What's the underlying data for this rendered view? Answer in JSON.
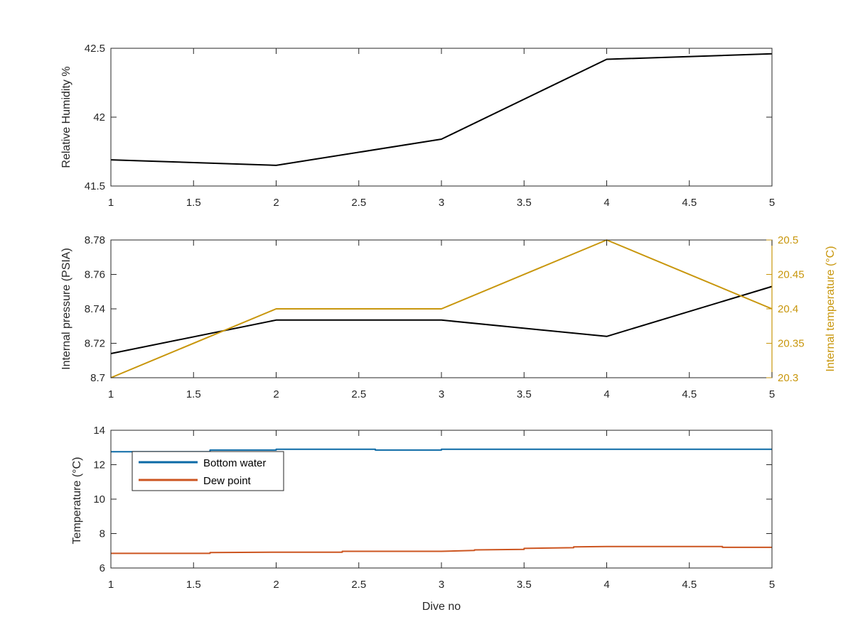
{
  "figure": {
    "background": "#ffffff",
    "axis_color": "#262626"
  },
  "chart_data": [
    {
      "type": "line",
      "xlim": [
        1,
        5
      ],
      "ylim": [
        41.5,
        42.5
      ],
      "x_ticks": [
        1,
        1.5,
        2,
        2.5,
        3,
        3.5,
        4,
        4.5,
        5
      ],
      "x_tick_labels": [
        "1",
        "1.5",
        "2",
        "2.5",
        "3",
        "3.5",
        "4",
        "4.5",
        "5"
      ],
      "y_ticks": [
        41.5,
        42,
        42.5
      ],
      "y_tick_labels": [
        "41.5",
        "42",
        "42.5"
      ],
      "ylabel": "Relative Humidity %",
      "xlabel": "",
      "grid": false,
      "series": [
        {
          "color": "#000000",
          "x": [
            1,
            2,
            3,
            4,
            5
          ],
          "y": [
            41.69,
            41.65,
            41.84,
            42.42,
            42.46
          ]
        }
      ]
    },
    {
      "type": "line",
      "xlim": [
        1,
        5
      ],
      "ylim": [
        8.7,
        8.78
      ],
      "y2lim": [
        20.3,
        20.5
      ],
      "x_ticks": [
        1,
        1.5,
        2,
        2.5,
        3,
        3.5,
        4,
        4.5,
        5
      ],
      "x_tick_labels": [
        "1",
        "1.5",
        "2",
        "2.5",
        "3",
        "3.5",
        "4",
        "4.5",
        "5"
      ],
      "y_ticks": [
        8.7,
        8.72,
        8.74,
        8.76,
        8.78
      ],
      "y_tick_labels": [
        "8.7",
        "8.72",
        "8.74",
        "8.76",
        "8.78"
      ],
      "y2_ticks": [
        20.3,
        20.35,
        20.4,
        20.45,
        20.5
      ],
      "y2_tick_labels": [
        "20.3",
        "20.35",
        "20.4",
        "20.45",
        "20.5"
      ],
      "ylabel": "Internal pressure (PSIA)",
      "y2label": "Internal temperature (°C)",
      "y2color": "#c8960c",
      "xlabel": "",
      "grid": false,
      "series": [
        {
          "axis": "left",
          "color": "#000000",
          "x": [
            1,
            2,
            3,
            4,
            5
          ],
          "y": [
            8.714,
            8.7335,
            8.7335,
            8.724,
            8.753
          ]
        },
        {
          "axis": "right",
          "color": "#c8960c",
          "x": [
            1,
            2,
            3,
            4,
            5
          ],
          "y": [
            20.3,
            20.4,
            20.4,
            20.5,
            20.4
          ]
        }
      ]
    },
    {
      "type": "line",
      "xlim": [
        1,
        5
      ],
      "ylim": [
        6,
        14
      ],
      "x_ticks": [
        1,
        1.5,
        2,
        2.5,
        3,
        3.5,
        4,
        4.5,
        5
      ],
      "x_tick_labels": [
        "1",
        "1.5",
        "2",
        "2.5",
        "3",
        "3.5",
        "4",
        "4.5",
        "5"
      ],
      "y_ticks": [
        6,
        8,
        10,
        12,
        14
      ],
      "y_tick_labels": [
        "6",
        "8",
        "10",
        "12",
        "14"
      ],
      "ylabel": "Temperature (°C)",
      "xlabel": "Dive no",
      "grid": false,
      "legend": "top-left",
      "series": [
        {
          "name": "Bottom water",
          "color": "#0b6aa6",
          "x": [
            1,
            1.6,
            1.6,
            2,
            2,
            2.6,
            2.6,
            3,
            3,
            5
          ],
          "y": [
            12.75,
            12.75,
            12.85,
            12.85,
            12.9,
            12.9,
            12.85,
            12.85,
            12.9,
            12.9
          ]
        },
        {
          "name": "Dew point",
          "color": "#cc5520",
          "x": [
            1,
            1.6,
            1.6,
            2,
            2.4,
            2.4,
            3,
            3.2,
            3.2,
            3.5,
            3.5,
            3.8,
            3.8,
            4,
            4.7,
            4.7,
            5
          ],
          "y": [
            6.85,
            6.85,
            6.9,
            6.92,
            6.92,
            6.97,
            6.97,
            7.02,
            7.05,
            7.08,
            7.14,
            7.18,
            7.23,
            7.25,
            7.25,
            7.2,
            7.2
          ]
        }
      ]
    }
  ]
}
